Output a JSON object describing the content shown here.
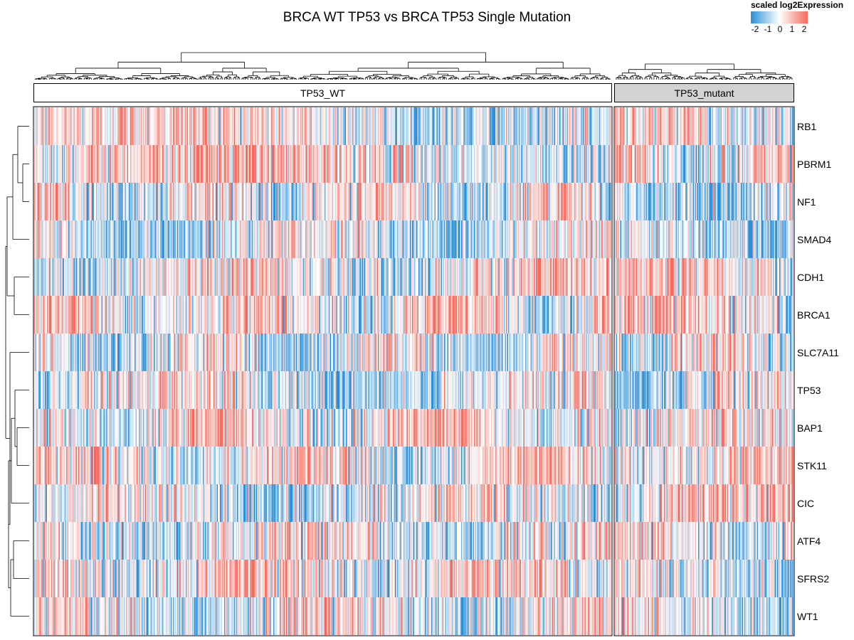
{
  "chart_data": {
    "type": "heatmap",
    "title": "BRCA WT TP53 vs BRCA TP53 Single Mutation",
    "legend": {
      "title": "scaled log2Expression",
      "ticks": [
        "-2",
        "-1",
        "0",
        "1",
        "2"
      ],
      "range": [
        -2,
        2
      ],
      "colors": {
        "low": "#2c8fd6",
        "mid": "#ffffff",
        "high": "#f56a5c"
      },
      "placement": "top-right"
    },
    "groups": [
      {
        "label": "TP53_WT",
        "fill": "#ffffff",
        "approx_samples": 540
      },
      {
        "label": "TP53_mutant",
        "fill": "#d3d3d3",
        "approx_samples": 170
      }
    ],
    "rows": [
      "RB1",
      "PBRM1",
      "NF1",
      "SMAD4",
      "CDH1",
      "BRCA1",
      "SLC7A11",
      "TP53",
      "BAP1",
      "STK11",
      "CIC",
      "ATF4",
      "SFRS2",
      "WT1"
    ],
    "row_dendrogram": true,
    "column_dendrogram": true
  }
}
